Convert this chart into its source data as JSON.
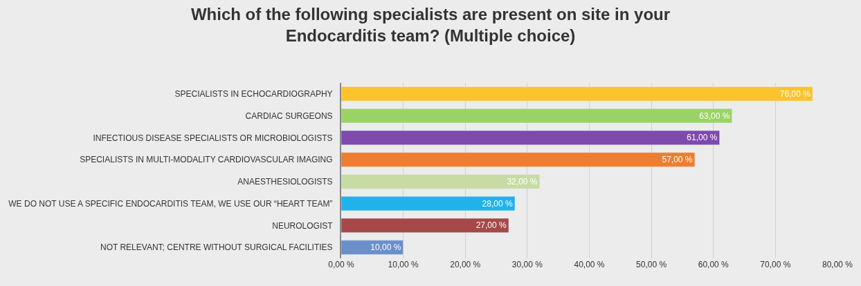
{
  "chart_data": {
    "type": "bar",
    "orientation": "horizontal",
    "title": "Which of the following specialists are present on site in your\nEndocarditis team? (Multiple choice)",
    "categories": [
      "SPECIALISTS IN ECHOCARDIOGRAPHY",
      "CARDIAC SURGEONS",
      "INFECTIOUS DISEASE SPECIALISTS OR MICROBIOLOGISTS",
      "SPECIALISTS IN MULTI-MODALITY CARDIOVASCULAR IMAGING",
      "ANAESTHESIOLOGISTS",
      "WE DO NOT USE A SPECIFIC ENDOCARDITIS TEAM, WE USE OUR “HEART TEAM”",
      "NEUROLOGIST",
      "NOT RELEVANT; CENTRE WITHOUT SURGICAL FACILITIES"
    ],
    "values": [
      76,
      63,
      61,
      57,
      32,
      28,
      27,
      10
    ],
    "value_labels": [
      "76,00 %",
      "63,00 %",
      "61,00 %",
      "57,00 %",
      "32,00 %",
      "28,00 %",
      "27,00 %",
      "10,00 %"
    ],
    "colors": [
      "#fcc42c",
      "#99d366",
      "#7e4aae",
      "#ee7d30",
      "#c6dca4",
      "#20b3eb",
      "#a64848",
      "#6a8fc9"
    ],
    "xlim": [
      0,
      80
    ],
    "xticks": [
      {
        "value": 0,
        "label": "0,00 %"
      },
      {
        "value": 10,
        "label": "10,00 %"
      },
      {
        "value": 20,
        "label": "20,00 %"
      },
      {
        "value": 30,
        "label": "30,00 %"
      },
      {
        "value": 40,
        "label": "40,00 %"
      },
      {
        "value": 50,
        "label": "50,00 %"
      },
      {
        "value": 60,
        "label": "60,00 %"
      },
      {
        "value": 70,
        "label": "70,00 %"
      },
      {
        "value": 80,
        "label": "80,00 %"
      }
    ],
    "grid": "x",
    "legend": false
  }
}
